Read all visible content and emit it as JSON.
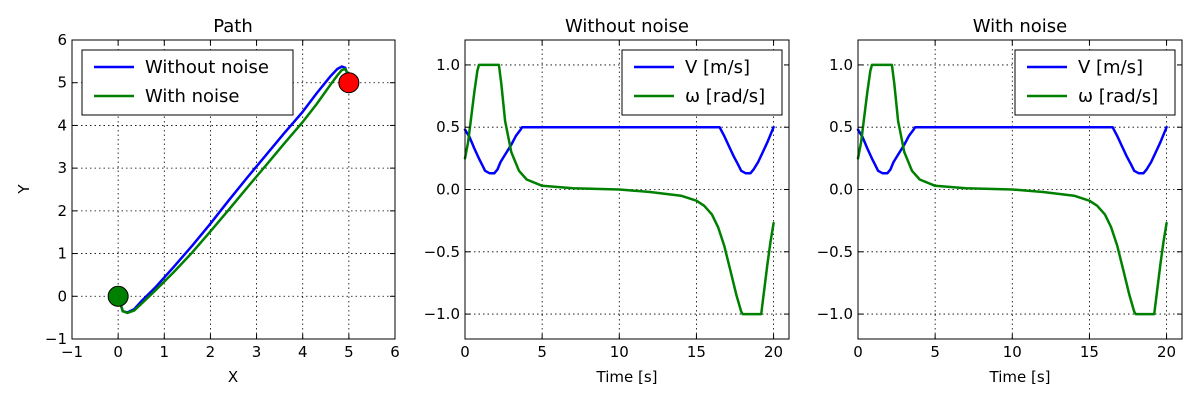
{
  "chart_data": [
    {
      "type": "line",
      "title": "Path",
      "xlabel": "X",
      "ylabel": "Y",
      "xlim": [
        -1,
        6
      ],
      "ylim": [
        -1,
        6
      ],
      "xticks": [
        -1,
        0,
        1,
        2,
        3,
        4,
        5,
        6
      ],
      "yticks": [
        -1,
        0,
        1,
        2,
        3,
        4,
        5,
        6
      ],
      "xtick_labels": [
        "−1",
        "0",
        "1",
        "2",
        "3",
        "4",
        "5",
        "6"
      ],
      "ytick_labels": [
        "−1",
        "0",
        "1",
        "2",
        "3",
        "4",
        "5",
        "6"
      ],
      "grid": true,
      "legend": "top-left",
      "series": [
        {
          "name": "Without noise",
          "color": "#0000ff",
          "x": [
            0.0,
            0.1,
            0.2,
            0.35,
            0.5,
            0.8,
            1.2,
            1.6,
            2.0,
            2.4,
            2.8,
            3.2,
            3.6,
            4.0,
            4.3,
            4.6,
            4.75,
            4.85,
            4.92,
            4.97,
            5.0
          ],
          "y": [
            0.0,
            -0.35,
            -0.38,
            -0.3,
            -0.12,
            0.2,
            0.68,
            1.18,
            1.7,
            2.25,
            2.78,
            3.3,
            3.82,
            4.32,
            4.75,
            5.15,
            5.32,
            5.38,
            5.35,
            5.2,
            5.0
          ]
        },
        {
          "name": "With noise",
          "color": "#008000",
          "x": [
            0.0,
            0.1,
            0.2,
            0.35,
            0.5,
            0.8,
            1.2,
            1.6,
            2.0,
            2.4,
            2.8,
            3.2,
            3.6,
            4.0,
            4.3,
            4.6,
            4.75,
            4.85,
            4.92,
            4.97,
            5.0
          ],
          "y": [
            0.0,
            -0.35,
            -0.39,
            -0.33,
            -0.18,
            0.13,
            0.56,
            1.02,
            1.52,
            2.03,
            2.55,
            3.06,
            3.58,
            4.08,
            4.5,
            4.95,
            5.17,
            5.3,
            5.32,
            5.22,
            5.0
          ]
        }
      ],
      "markers": [
        {
          "x": 0,
          "y": 0,
          "color": "#008000"
        },
        {
          "x": 5,
          "y": 5,
          "color": "#ff0000"
        }
      ]
    },
    {
      "type": "line",
      "title": "Without noise",
      "xlabel": "Time [s]",
      "ylabel": "",
      "xlim": [
        0,
        21
      ],
      "ylim": [
        -1.2,
        1.2
      ],
      "xticks": [
        0,
        5,
        10,
        15,
        20
      ],
      "yticks": [
        -1.0,
        -0.5,
        0.0,
        0.5,
        1.0
      ],
      "xtick_labels": [
        "0",
        "5",
        "10",
        "15",
        "20"
      ],
      "ytick_labels": [
        "−1.0",
        "−0.5",
        "0.0",
        "0.5",
        "1.0"
      ],
      "grid": true,
      "legend": "top-right",
      "series": [
        {
          "name": "V [m/s]",
          "color": "#0000ff",
          "x": [
            0.0,
            0.3,
            0.6,
            0.9,
            1.1,
            1.3,
            1.6,
            1.9,
            2.1,
            2.3,
            2.6,
            3.0,
            3.3,
            3.6,
            3.7,
            16.5,
            16.8,
            17.1,
            17.4,
            17.7,
            17.9,
            18.2,
            18.5,
            18.7,
            19.0,
            19.3,
            19.6,
            20.0
          ],
          "y": [
            0.48,
            0.42,
            0.33,
            0.25,
            0.2,
            0.15,
            0.13,
            0.13,
            0.16,
            0.22,
            0.28,
            0.36,
            0.43,
            0.48,
            0.5,
            0.5,
            0.43,
            0.35,
            0.27,
            0.2,
            0.15,
            0.13,
            0.13,
            0.16,
            0.22,
            0.3,
            0.38,
            0.5
          ]
        },
        {
          "name": "ω [rad/s]",
          "color": "#008000",
          "x": [
            0.0,
            0.2,
            0.4,
            0.6,
            0.8,
            0.9,
            1.0,
            1.5,
            2.2,
            2.35,
            2.6,
            3.0,
            3.5,
            4.0,
            5.0,
            7.0,
            10.0,
            12.0,
            14.0,
            15.0,
            15.5,
            16.0,
            16.4,
            16.8,
            17.2,
            17.6,
            17.9,
            18.0,
            19.2,
            19.4,
            19.6,
            19.8,
            20.0
          ],
          "y": [
            0.25,
            0.38,
            0.58,
            0.78,
            0.95,
            1.0,
            1.0,
            1.0,
            1.0,
            0.85,
            0.55,
            0.3,
            0.15,
            0.08,
            0.03,
            0.01,
            0.0,
            -0.02,
            -0.05,
            -0.09,
            -0.13,
            -0.2,
            -0.3,
            -0.45,
            -0.65,
            -0.85,
            -0.98,
            -1.0,
            -1.0,
            -0.8,
            -0.6,
            -0.42,
            -0.27
          ]
        }
      ]
    },
    {
      "type": "line",
      "title": "With noise",
      "xlabel": "Time [s]",
      "ylabel": "",
      "xlim": [
        0,
        21
      ],
      "ylim": [
        -1.2,
        1.2
      ],
      "xticks": [
        0,
        5,
        10,
        15,
        20
      ],
      "yticks": [
        -1.0,
        -0.5,
        0.0,
        0.5,
        1.0
      ],
      "xtick_labels": [
        "0",
        "5",
        "10",
        "15",
        "20"
      ],
      "ytick_labels": [
        "−1.0",
        "−0.5",
        "0.0",
        "0.5",
        "1.0"
      ],
      "grid": true,
      "legend": "top-right",
      "series": [
        {
          "name": "V [m/s]",
          "color": "#0000ff",
          "x": [
            0.0,
            0.3,
            0.6,
            0.9,
            1.1,
            1.3,
            1.6,
            1.9,
            2.1,
            2.3,
            2.6,
            3.0,
            3.3,
            3.6,
            3.7,
            16.5,
            16.8,
            17.1,
            17.4,
            17.7,
            17.9,
            18.2,
            18.5,
            18.7,
            19.0,
            19.3,
            19.6,
            20.0
          ],
          "y": [
            0.48,
            0.42,
            0.33,
            0.25,
            0.2,
            0.15,
            0.13,
            0.13,
            0.16,
            0.22,
            0.28,
            0.36,
            0.43,
            0.48,
            0.5,
            0.5,
            0.43,
            0.35,
            0.27,
            0.2,
            0.15,
            0.13,
            0.13,
            0.16,
            0.22,
            0.3,
            0.38,
            0.5
          ]
        },
        {
          "name": "ω [rad/s]",
          "color": "#008000",
          "x": [
            0.0,
            0.2,
            0.4,
            0.6,
            0.8,
            0.9,
            1.0,
            1.5,
            2.2,
            2.35,
            2.6,
            3.0,
            3.5,
            4.0,
            5.0,
            7.0,
            10.0,
            12.0,
            14.0,
            15.0,
            15.5,
            16.0,
            16.4,
            16.8,
            17.2,
            17.6,
            17.9,
            18.0,
            19.2,
            19.4,
            19.6,
            19.8,
            20.0
          ],
          "y": [
            0.25,
            0.38,
            0.58,
            0.78,
            0.95,
            1.0,
            1.0,
            1.0,
            1.0,
            0.85,
            0.55,
            0.3,
            0.15,
            0.08,
            0.03,
            0.01,
            0.0,
            -0.02,
            -0.05,
            -0.09,
            -0.13,
            -0.2,
            -0.3,
            -0.45,
            -0.65,
            -0.85,
            -0.98,
            -1.0,
            -1.0,
            -0.8,
            -0.6,
            -0.42,
            -0.27
          ]
        }
      ]
    }
  ]
}
